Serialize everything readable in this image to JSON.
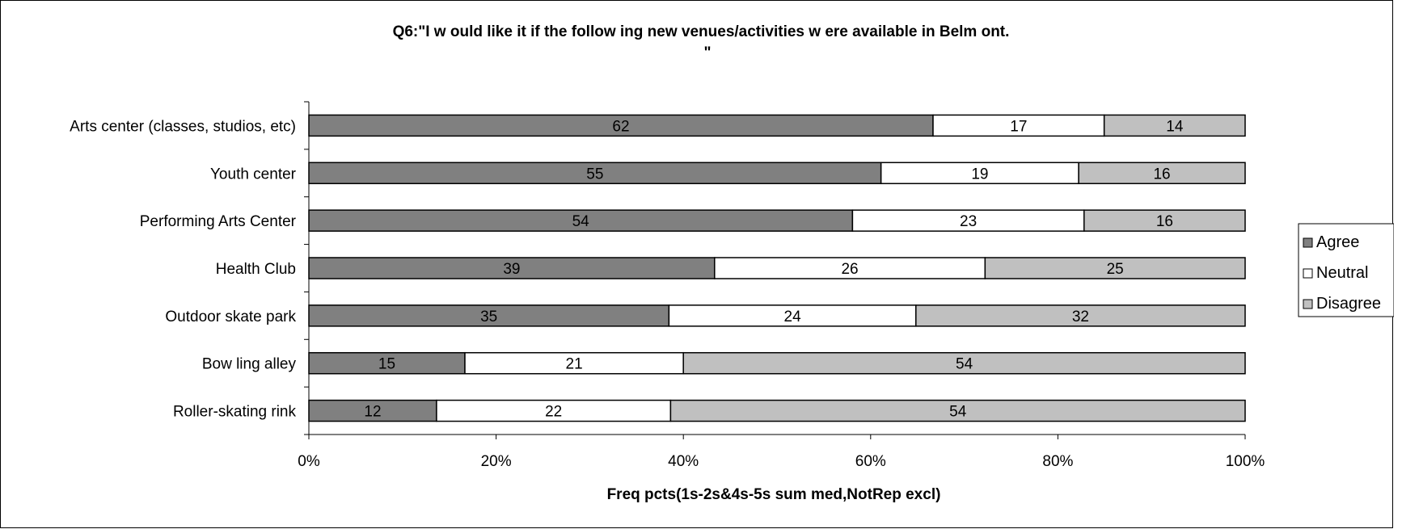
{
  "chart_data": {
    "type": "bar",
    "orientation": "horizontal",
    "stacked": true,
    "title_lines": [
      "Q6:\"I w ould like it if the follow ing new venues/activities w ere available in Belm ont.",
      "\""
    ],
    "xlabel": "Freq pcts(1s-2s&4s-5s sum med,NotRep excl)",
    "ylabel": "",
    "xlim": [
      0,
      100
    ],
    "x_ticks": [
      "0%",
      "20%",
      "40%",
      "60%",
      "80%",
      "100%"
    ],
    "categories": [
      "Arts center (classes, studios, etc)",
      "Youth center",
      "Performing Arts Center",
      "Health Club",
      "Outdoor skate park",
      "Bow ling alley",
      "Roller-skating rink"
    ],
    "series": [
      {
        "name": "Agree",
        "color": "#808080",
        "values": [
          62,
          55,
          54,
          39,
          35,
          15,
          12
        ]
      },
      {
        "name": "Neutral",
        "color": "#ffffff",
        "values": [
          17,
          19,
          23,
          26,
          24,
          21,
          22
        ]
      },
      {
        "name": "Disagree",
        "color": "#c0c0c0",
        "values": [
          14,
          16,
          16,
          25,
          32,
          54,
          54
        ]
      }
    ],
    "legend_position": "right",
    "grid": false
  }
}
